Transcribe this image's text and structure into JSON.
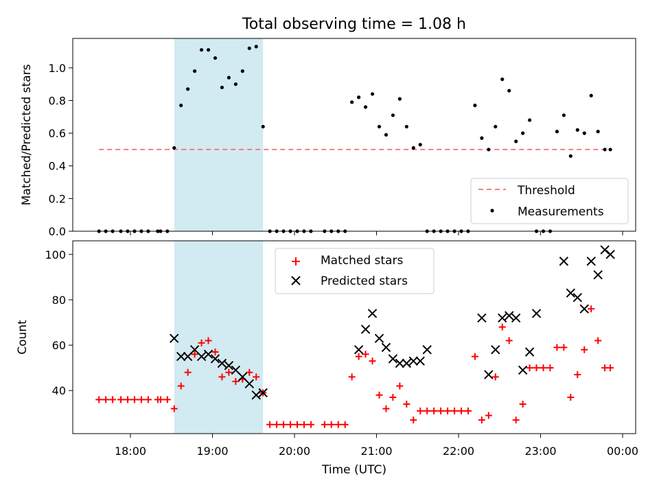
{
  "figure": {
    "title": "Total observing time = 1.08 h",
    "xlabel": "Time (UTC)",
    "xticks": [
      "18:00",
      "19:00",
      "20:00",
      "21:00",
      "22:00",
      "23:00",
      "00:00"
    ],
    "highlight_span": [
      "18:32",
      "19:37"
    ],
    "span_color": "#add8e6"
  },
  "chart_data": [
    {
      "type": "scatter",
      "ylabel": "Matched/Predicted stars",
      "ylim": [
        0,
        1.18
      ],
      "yticks": [
        "0.0",
        "0.2",
        "0.4",
        "0.6",
        "0.8",
        "1.0"
      ],
      "legend_position": "lower right",
      "threshold": {
        "name": "Threshold",
        "y": 0.5,
        "x_range": [
          "17:37",
          "23:51"
        ],
        "color": "#f08080",
        "style": "dashed"
      },
      "series": [
        {
          "name": "Measurements",
          "color": "#000000",
          "marker": "dot",
          "x": [
            "17:37",
            "17:42",
            "17:47",
            "17:53",
            "17:58",
            "18:03",
            "18:08",
            "18:13",
            "18:20",
            "18:22",
            "18:27",
            "18:32",
            "18:37",
            "18:42",
            "18:47",
            "18:52",
            "18:57",
            "19:02",
            "19:07",
            "19:12",
            "19:17",
            "19:22",
            "19:27",
            "19:32",
            "19:37",
            "19:42",
            "19:47",
            "19:52",
            "19:57",
            "20:02",
            "20:07",
            "20:12",
            "20:22",
            "20:27",
            "20:32",
            "20:37",
            "20:42",
            "20:47",
            "20:52",
            "20:57",
            "21:02",
            "21:07",
            "21:12",
            "21:17",
            "21:22",
            "21:27",
            "21:32",
            "21:37",
            "21:42",
            "21:47",
            "21:52",
            "21:57",
            "22:02",
            "22:07",
            "22:12",
            "22:17",
            "22:22",
            "22:27",
            "22:32",
            "22:37",
            "22:42",
            "22:47",
            "22:52",
            "22:57",
            "23:02",
            "23:07",
            "23:12",
            "23:17",
            "23:22",
            "23:27",
            "23:32",
            "23:37",
            "23:42",
            "23:47",
            "23:51"
          ],
          "y": [
            0,
            0,
            0,
            0,
            0,
            0,
            0,
            0,
            0,
            0,
            0,
            0.51,
            0.77,
            0.87,
            0.98,
            1.11,
            1.11,
            1.06,
            0.88,
            0.94,
            0.9,
            0.98,
            1.12,
            1.13,
            0.64,
            0,
            0,
            0,
            0,
            0,
            0,
            0,
            0,
            0,
            0,
            0,
            0.79,
            0.82,
            0.76,
            0.84,
            0.64,
            0.59,
            0.71,
            0.81,
            0.64,
            0.51,
            0.53,
            0,
            0,
            0,
            0,
            0,
            0,
            0,
            0.77,
            0.57,
            0.5,
            0.64,
            0.93,
            0.86,
            0.55,
            0.6,
            0.68,
            0,
            0,
            0,
            0.61,
            0.71,
            0.46,
            0.62,
            0.6,
            0.83,
            0.61,
            0.5,
            0.5
          ]
        }
      ]
    },
    {
      "type": "scatter",
      "ylabel": "Count",
      "ylim": [
        21,
        106
      ],
      "yticks": [
        "40",
        "60",
        "80",
        "100"
      ],
      "legend_position": "upper center",
      "series": [
        {
          "name": "Matched stars",
          "color": "#ff0000",
          "marker": "plus",
          "x": [
            "17:37",
            "17:42",
            "17:47",
            "17:53",
            "17:58",
            "18:03",
            "18:08",
            "18:13",
            "18:20",
            "18:22",
            "18:27",
            "18:32",
            "18:37",
            "18:42",
            "18:47",
            "18:52",
            "18:57",
            "19:02",
            "19:07",
            "19:12",
            "19:17",
            "19:22",
            "19:27",
            "19:32",
            "19:37",
            "19:42",
            "19:47",
            "19:52",
            "19:57",
            "20:02",
            "20:07",
            "20:12",
            "20:22",
            "20:27",
            "20:32",
            "20:37",
            "20:42",
            "20:47",
            "20:52",
            "20:57",
            "21:02",
            "21:07",
            "21:12",
            "21:17",
            "21:22",
            "21:27",
            "21:32",
            "21:37",
            "21:42",
            "21:47",
            "21:52",
            "21:57",
            "22:02",
            "22:07",
            "22:12",
            "22:17",
            "22:22",
            "22:27",
            "22:32",
            "22:37",
            "22:42",
            "22:47",
            "22:52",
            "22:57",
            "23:02",
            "23:07",
            "23:12",
            "23:17",
            "23:22",
            "23:27",
            "23:32",
            "23:37",
            "23:42",
            "23:47",
            "23:51"
          ],
          "y": [
            36,
            36,
            36,
            36,
            36,
            36,
            36,
            36,
            36,
            36,
            36,
            32,
            42,
            48,
            56,
            61,
            62,
            57,
            46,
            48,
            44,
            45,
            48,
            46,
            39,
            25,
            25,
            25,
            25,
            25,
            25,
            25,
            25,
            25,
            25,
            25,
            46,
            55,
            56,
            53,
            38,
            32,
            37,
            42,
            34,
            27,
            31,
            31,
            31,
            31,
            31,
            31,
            31,
            31,
            55,
            27,
            29,
            46,
            68,
            62,
            27,
            34,
            50,
            50,
            50,
            50,
            59,
            59,
            37,
            47,
            58,
            76,
            62,
            50,
            50
          ]
        },
        {
          "name": "Predicted stars",
          "color": "#000000",
          "marker": "cross",
          "x": [
            "18:32",
            "18:37",
            "18:42",
            "18:47",
            "18:52",
            "18:57",
            "19:02",
            "19:07",
            "19:12",
            "19:17",
            "19:22",
            "19:27",
            "19:32",
            "19:37",
            "20:47",
            "20:52",
            "20:57",
            "21:02",
            "21:07",
            "21:12",
            "21:17",
            "21:22",
            "21:27",
            "21:32",
            "21:37",
            "22:17",
            "22:22",
            "22:27",
            "22:32",
            "22:37",
            "22:42",
            "22:47",
            "22:52",
            "22:57",
            "23:17",
            "23:22",
            "23:27",
            "23:32",
            "23:37",
            "23:42",
            "23:47",
            "23:51"
          ],
          "y": [
            63,
            55,
            55,
            58,
            55,
            56,
            54,
            52,
            51,
            49,
            46,
            43,
            38,
            39,
            58,
            67,
            74,
            63,
            59,
            54,
            52,
            52,
            53,
            53,
            58,
            72,
            47,
            58,
            72,
            73,
            72,
            49,
            57,
            74,
            97,
            83,
            81,
            76,
            97,
            91,
            102,
            100
          ]
        }
      ]
    }
  ]
}
